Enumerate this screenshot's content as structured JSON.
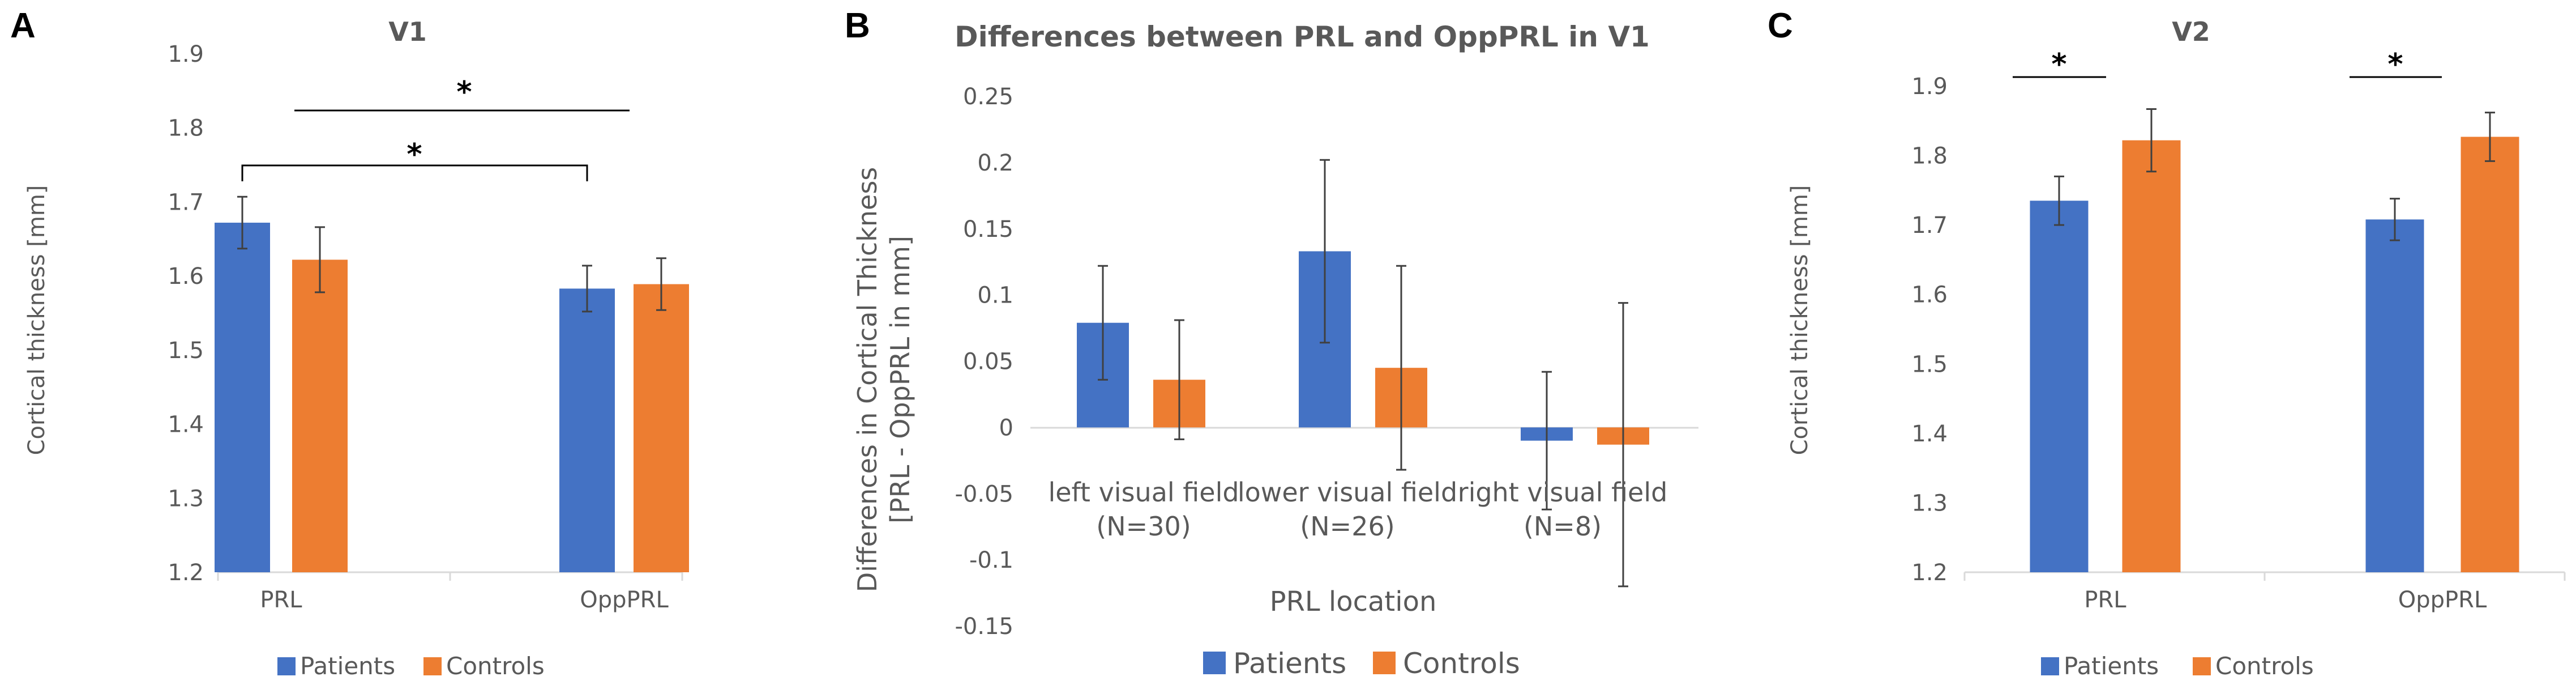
{
  "colors": {
    "patients": "#4472C4",
    "controls": "#ED7D31",
    "axis": "#D9D9D9",
    "text": "#595959",
    "errorbar": "#404040"
  },
  "chart_data": [
    {
      "panel": "A",
      "type": "bar",
      "title": "V1",
      "xlabel": "",
      "ylabel": "Cortical thickness [mm]",
      "ylim": [
        1.2,
        1.9
      ],
      "yticks": [
        "1.2",
        "1.3",
        "1.4",
        "1.5",
        "1.6",
        "1.7",
        "1.8",
        "1.9"
      ],
      "categories": [
        "PRL",
        "OppPRL"
      ],
      "series": [
        {
          "name": "Patients",
          "values": [
            1.672,
            1.583
          ],
          "errors": [
            0.035,
            0.031
          ]
        },
        {
          "name": "Controls",
          "values": [
            1.622,
            1.589
          ],
          "errors": [
            0.044,
            0.035
          ]
        }
      ],
      "annotations": [
        {
          "text": "*",
          "from": "PRL Patients",
          "to": "OppPRL Patients",
          "at": 1.79
        },
        {
          "text": "*",
          "from": "PRL",
          "to": "OppPRL",
          "at": 1.838
        }
      ],
      "legend": [
        "Patients",
        "Controls"
      ],
      "legend_position": "bottom"
    },
    {
      "panel": "B",
      "type": "bar",
      "title": "Differences between PRL and OppPRL in V1",
      "xlabel": "PRL location",
      "ylabel_lines": [
        "Differences in Cortical Thickness",
        "[PRL - OppPRL in mm]"
      ],
      "ylim": [
        -0.15,
        0.25
      ],
      "yticks": [
        "-0.15",
        "-0.1",
        "-0.05",
        "0",
        "0.05",
        "0.1",
        "0.15",
        "0.2",
        "0.25"
      ],
      "categories": [
        [
          "left visual field",
          "(N=30)"
        ],
        [
          "lower visual field",
          "(N=26)"
        ],
        [
          "right visual field",
          "(N=8)"
        ]
      ],
      "series": [
        {
          "name": "Patients",
          "values": [
            0.079,
            0.133,
            -0.01
          ],
          "errors": [
            0.043,
            0.069,
            0.052
          ]
        },
        {
          "name": "Controls",
          "values": [
            0.036,
            0.045,
            -0.013
          ],
          "errors": [
            0.045,
            0.077,
            0.107
          ]
        }
      ],
      "legend": [
        "Patients",
        "Controls"
      ],
      "legend_position": "bottom"
    },
    {
      "panel": "C",
      "type": "bar",
      "title": "V2",
      "xlabel": "",
      "ylabel": "Cortical thickness [mm]",
      "ylim": [
        1.2,
        1.9
      ],
      "yticks": [
        "1.2",
        "1.3",
        "1.4",
        "1.5",
        "1.6",
        "1.7",
        "1.8",
        "1.9"
      ],
      "categories": [
        "PRL",
        "OppPRL"
      ],
      "series": [
        {
          "name": "Patients",
          "values": [
            1.735,
            1.708
          ],
          "errors": [
            0.035,
            0.03
          ]
        },
        {
          "name": "Controls",
          "values": [
            1.822,
            1.827
          ],
          "errors": [
            0.045,
            0.035
          ]
        }
      ],
      "annotations": [
        {
          "text": "*",
          "from": "PRL Patients",
          "to": "PRL Controls",
          "at": 1.87
        },
        {
          "text": "*",
          "from": "OppPRL Patients",
          "to": "OppPRL Controls",
          "at": 1.87
        }
      ],
      "legend": [
        "Patients",
        "Controls"
      ],
      "legend_position": "bottom"
    }
  ]
}
